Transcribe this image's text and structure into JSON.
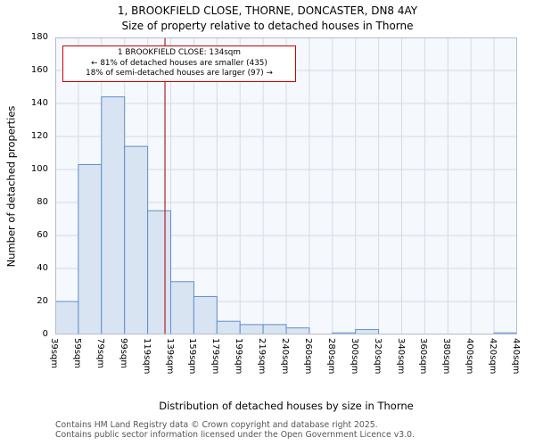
{
  "title": "1, BROOKFIELD CLOSE, THORNE, DONCASTER, DN8 4AY",
  "subtitle": "Size of property relative to detached houses in Thorne",
  "annotation": {
    "line1": "1 BROOKFIELD CLOSE: 134sqm",
    "line2": "← 81% of detached houses are smaller (435)",
    "line3": "18% of semi-detached houses are larger (97) →"
  },
  "chart_data": {
    "type": "bar",
    "title": "1, BROOKFIELD CLOSE, THORNE, DONCASTER, DN8 4AY",
    "subtitle": "Size of property relative to detached houses in Thorne",
    "xlabel": "Distribution of detached houses by size in Thorne",
    "ylabel": "Number of detached properties",
    "bin_edges": [
      39,
      59,
      79,
      99,
      119,
      139,
      159,
      179,
      199,
      219,
      240,
      260,
      280,
      300,
      320,
      340,
      360,
      380,
      400,
      420,
      440
    ],
    "categories": [
      "39sqm",
      "59sqm",
      "79sqm",
      "99sqm",
      "119sqm",
      "139sqm",
      "159sqm",
      "179sqm",
      "199sqm",
      "219sqm",
      "240sqm",
      "260sqm",
      "280sqm",
      "300sqm",
      "320sqm",
      "340sqm",
      "360sqm",
      "380sqm",
      "400sqm",
      "420sqm",
      "440sqm"
    ],
    "values": [
      20,
      103,
      144,
      114,
      75,
      32,
      23,
      8,
      6,
      6,
      4,
      0,
      1,
      3,
      0,
      0,
      0,
      0,
      0,
      1
    ],
    "ylim": [
      0,
      180
    ],
    "yticks": [
      0,
      20,
      40,
      60,
      80,
      100,
      120,
      140,
      160,
      180
    ],
    "marker_value": 134,
    "marker_color": "#b22222",
    "bar_fill": "#d9e4f3",
    "bar_stroke": "#5f8dc9",
    "grid_color": "#d4dbe8",
    "plot_bg": "#f5f8fc",
    "frame_color": "#b4bccb",
    "grid_on": true,
    "legend": "none"
  },
  "footer": {
    "line1": "Contains HM Land Registry data © Crown copyright and database right 2025.",
    "line2": "Contains public sector information licensed under the Open Government Licence v3.0."
  }
}
